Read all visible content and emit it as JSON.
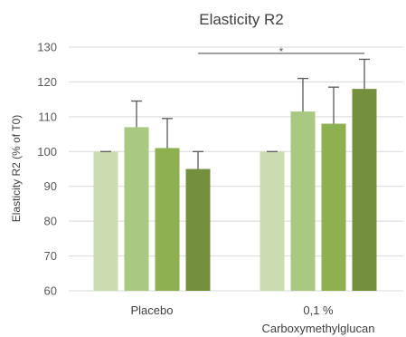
{
  "chart_data": {
    "type": "bar",
    "title": "Elasticity R2",
    "ylabel": "Elasticity R2 (% of T0)",
    "xlabel": "",
    "ylim": [
      60,
      130
    ],
    "yticks": [
      60,
      70,
      80,
      90,
      100,
      110,
      120,
      130
    ],
    "grid": true,
    "categories": [
      {
        "lines": [
          "Placebo"
        ]
      },
      {
        "lines": [
          "0,1 %",
          "Carboxymethylglucan"
        ]
      }
    ],
    "series": [
      {
        "color": "#cbdcb1",
        "values": [
          100,
          100
        ],
        "errors": [
          0,
          0
        ]
      },
      {
        "color": "#a9c882",
        "values": [
          107,
          111.5
        ],
        "errors": [
          7.5,
          9.5
        ]
      },
      {
        "color": "#8eb050",
        "values": [
          101,
          108
        ],
        "errors": [
          8.5,
          10.5
        ]
      },
      {
        "color": "#74903f",
        "values": [
          95,
          118
        ],
        "errors": [
          5,
          8.5
        ]
      }
    ],
    "significance": {
      "label": "*",
      "y": 128.2
    }
  }
}
